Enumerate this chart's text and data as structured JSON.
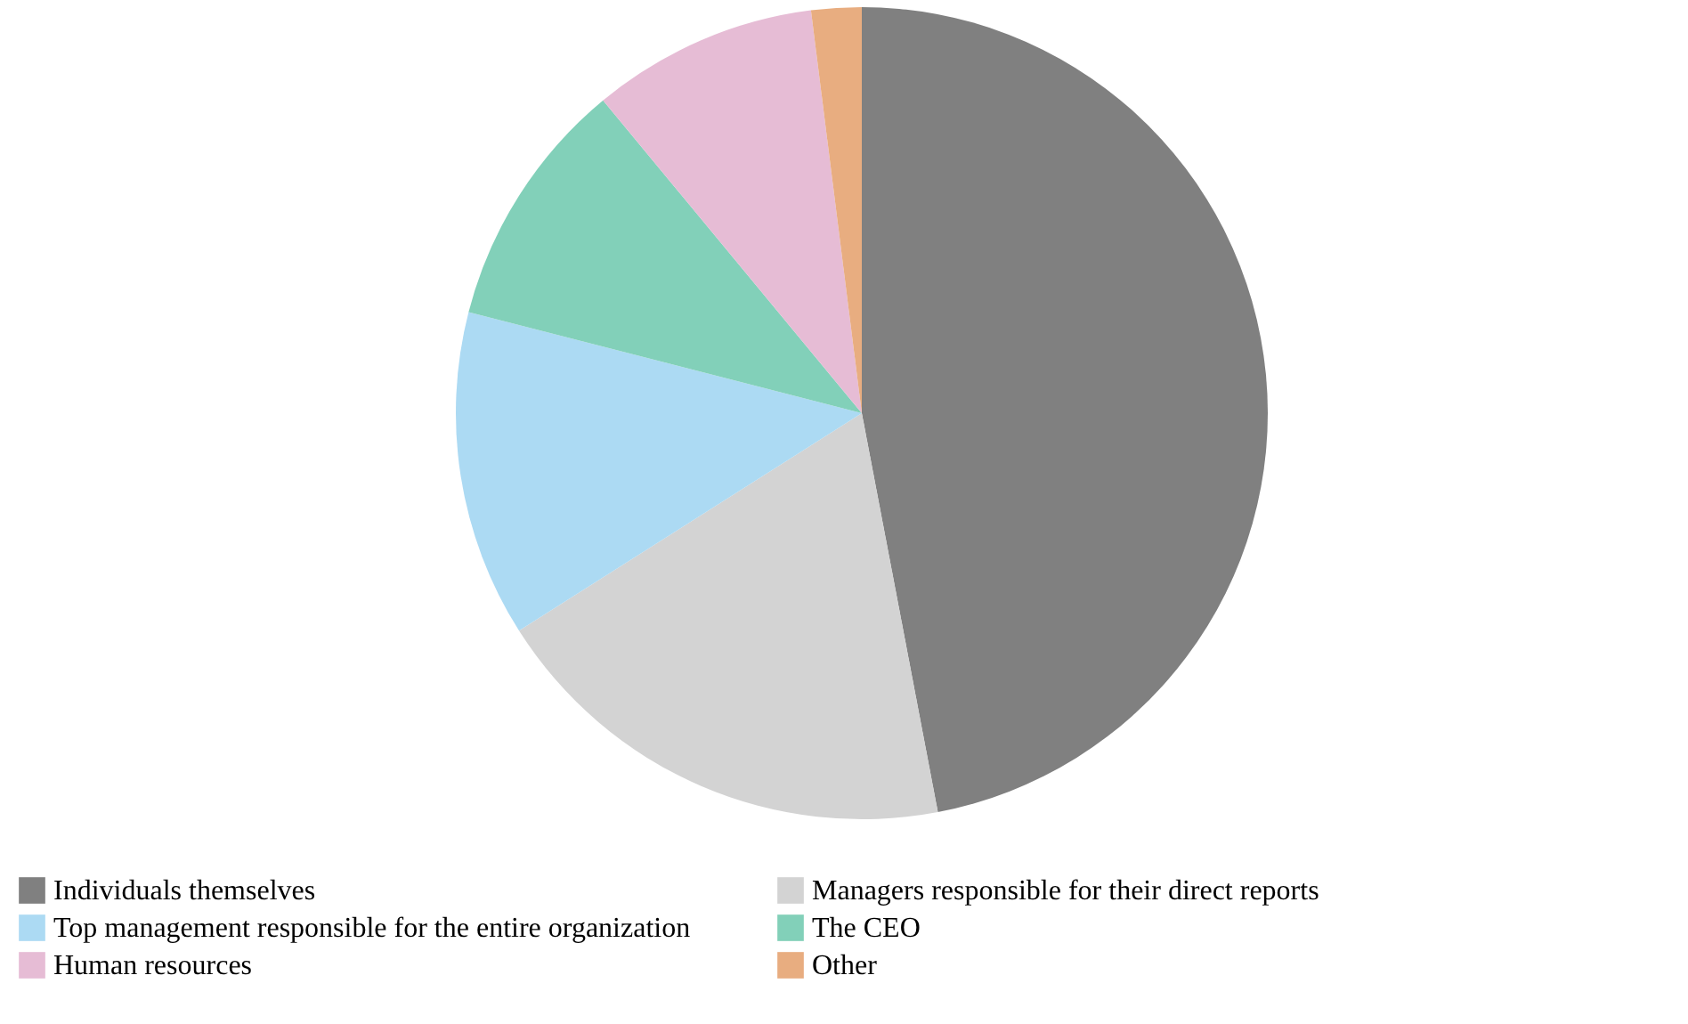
{
  "chart_data": {
    "type": "pie",
    "categories": [
      "Individuals themselves",
      "Managers responsible for their direct reports",
      "Top management responsible for the entire organization",
      "The CEO",
      "Human resources",
      "Other"
    ],
    "values": [
      47,
      19,
      13,
      10,
      9,
      2
    ],
    "colors": [
      "#808080",
      "#d3d3d3",
      "#acdaf3",
      "#82d0b9",
      "#e6bcd5",
      "#e8ad80"
    ],
    "legend": "bottom"
  }
}
